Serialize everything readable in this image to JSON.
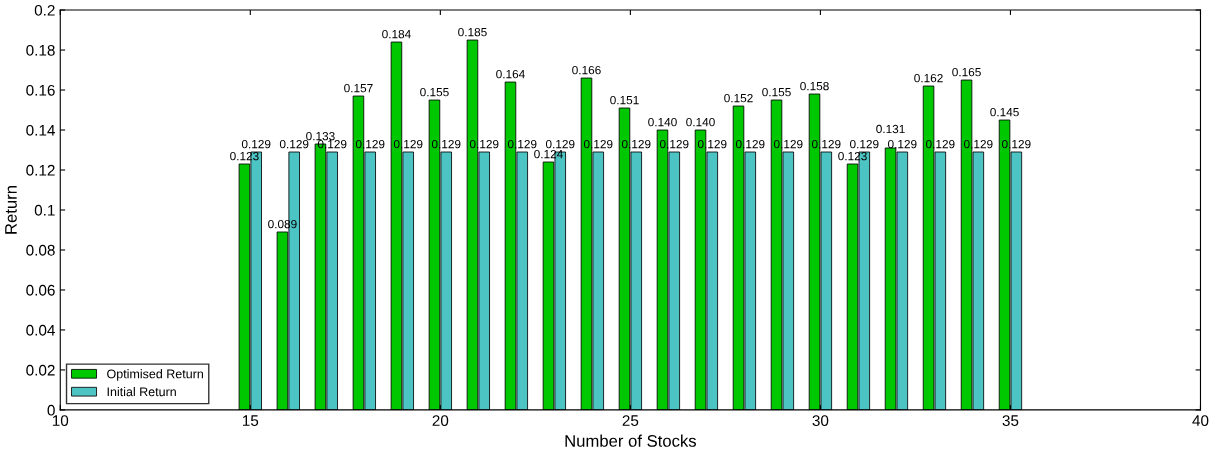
{
  "chart_data": {
    "type": "bar",
    "xlabel": "Number of Stocks",
    "ylabel": "Return",
    "x": [
      15,
      16,
      17,
      18,
      19,
      20,
      21,
      22,
      23,
      24,
      25,
      26,
      27,
      28,
      29,
      30,
      31,
      32,
      33,
      34,
      35
    ],
    "series": [
      {
        "name": "Optimised Return",
        "color": "#00c800",
        "values": [
          0.123,
          0.089,
          0.133,
          0.157,
          0.184,
          0.155,
          0.185,
          0.164,
          0.124,
          0.166,
          0.151,
          0.14,
          0.14,
          0.152,
          0.155,
          0.158,
          0.123,
          0.131,
          0.162,
          0.165,
          0.145
        ],
        "value_labels": [
          "0.123",
          "0.089",
          "0.133",
          "0.157",
          "0.184",
          "0.155",
          "0.185",
          "0.164",
          "0.124",
          "0.166",
          "0.151",
          "0.140",
          "0.140",
          "0.152",
          "0.155",
          "0.158",
          "0.123",
          "0.131",
          "0.162",
          "0.165",
          "0.145"
        ]
      },
      {
        "name": "Initial Return",
        "color": "#4dc4c4",
        "values": [
          0.129,
          0.129,
          0.129,
          0.129,
          0.129,
          0.129,
          0.129,
          0.129,
          0.129,
          0.129,
          0.129,
          0.129,
          0.129,
          0.129,
          0.129,
          0.129,
          0.129,
          0.129,
          0.129,
          0.129,
          0.129
        ],
        "value_labels": [
          "0.129",
          "0.129",
          "0.129",
          "0.129",
          "0.129",
          "0.129",
          "0.129",
          "0.129",
          "0.129",
          "0.129",
          "0.129",
          "0.129",
          "0.129",
          "0.129",
          "0.129",
          "0.129",
          "0.129",
          "0.129",
          "0.129",
          "0.129",
          "0.129"
        ]
      }
    ],
    "xlim": [
      10,
      40
    ],
    "xticks": [
      10,
      15,
      20,
      25,
      30,
      35,
      40
    ],
    "ylim": [
      0,
      0.2
    ],
    "yticks": [
      0,
      0.02,
      0.04,
      0.06,
      0.08,
      0.1,
      0.12,
      0.14,
      0.16,
      0.18,
      0.2
    ],
    "grid": false,
    "legend": "bottom left"
  }
}
